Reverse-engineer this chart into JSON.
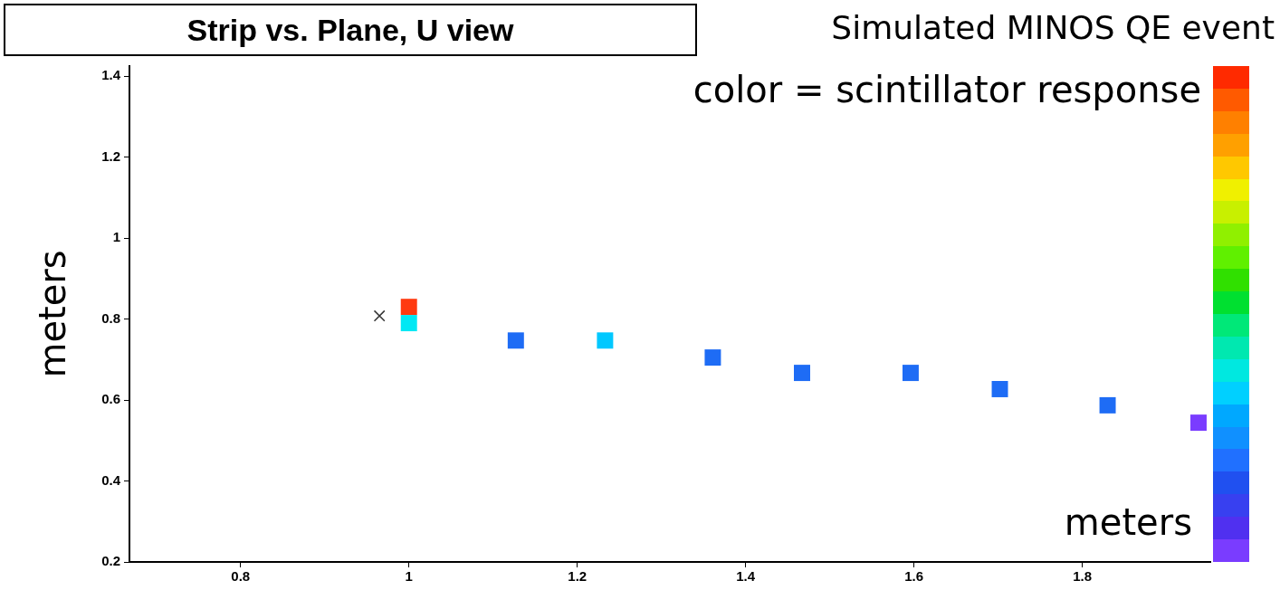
{
  "chart_data": {
    "type": "scatter",
    "title": "Strip vs. Plane, U view",
    "subtitle": "Simulated MINOS QE event",
    "xlabel": "meters",
    "ylabel": "meters",
    "annotations": [
      "color = scintillator response"
    ],
    "xlim": [
      0.668,
      1.952
    ],
    "ylim": [
      0.2,
      1.425
    ],
    "xticks": [
      0.8,
      1,
      1.2,
      1.4,
      1.6,
      1.8
    ],
    "yticks": [
      0.2,
      0.4,
      0.6,
      0.8,
      1,
      1.2,
      1.4
    ],
    "marker": "square",
    "series": [
      {
        "x": [
          1.0,
          1.0,
          1.127,
          1.233,
          1.361,
          1.467,
          1.596,
          1.702,
          1.83,
          1.938
        ],
        "values": [
          0.83,
          0.79,
          0.747,
          0.747,
          0.705,
          0.667,
          0.667,
          0.627,
          0.587,
          0.544
        ],
        "colors": [
          "#ff3a10",
          "#00e8f4",
          "#1e6cf5",
          "#00c8ff",
          "#1e6cf5",
          "#1e6cf5",
          "#1e6cf5",
          "#1e6cf5",
          "#1e6cf5",
          "#7a3cff"
        ]
      },
      {
        "x": [
          0.965
        ],
        "values": [
          0.808
        ],
        "color": "#333333",
        "marker": "cross"
      }
    ]
  }
}
